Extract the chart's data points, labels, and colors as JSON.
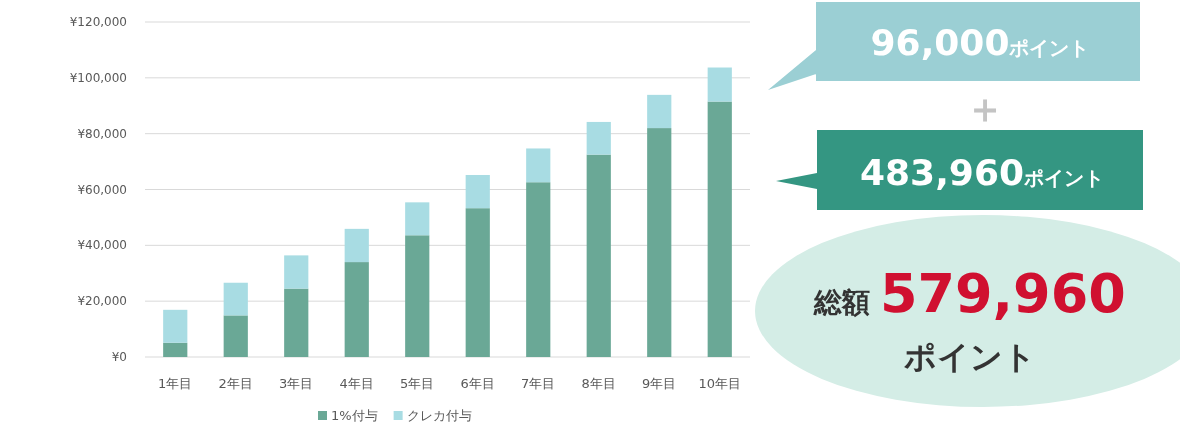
{
  "chart_data": {
    "type": "bar",
    "stacked": true,
    "categories": [
      "1年目",
      "2年目",
      "3年目",
      "4年目",
      "5年目",
      "6年目",
      "7年目",
      "8年目",
      "9年目",
      "10年目"
    ],
    "series": [
      {
        "name": "1%付与",
        "color": "#6aa896",
        "values": [
          5100,
          14900,
          24500,
          34000,
          43600,
          53300,
          62600,
          72500,
          82000,
          91500
        ]
      },
      {
        "name": "クレカ付与",
        "color": "#a8dce3",
        "values": [
          11800,
          11700,
          11900,
          11900,
          11800,
          11900,
          12100,
          11700,
          11900,
          12200
        ]
      }
    ],
    "ylim": [
      0,
      120000
    ],
    "yticks": [
      {
        "value": 0,
        "label": "¥0"
      },
      {
        "value": 20000,
        "label": "¥20,000"
      },
      {
        "value": 40000,
        "label": "¥40,000"
      },
      {
        "value": 60000,
        "label": "¥60,000"
      },
      {
        "value": 80000,
        "label": "¥80,000"
      },
      {
        "value": 100000,
        "label": "¥100,000"
      },
      {
        "value": 120000,
        "label": "¥120,000"
      }
    ],
    "grid": "y",
    "legend": "bottom",
    "annotations": [
      "96,000ポイント",
      "＋",
      "483,960ポイント",
      "総額",
      "579,960",
      "ポイント"
    ]
  }
}
